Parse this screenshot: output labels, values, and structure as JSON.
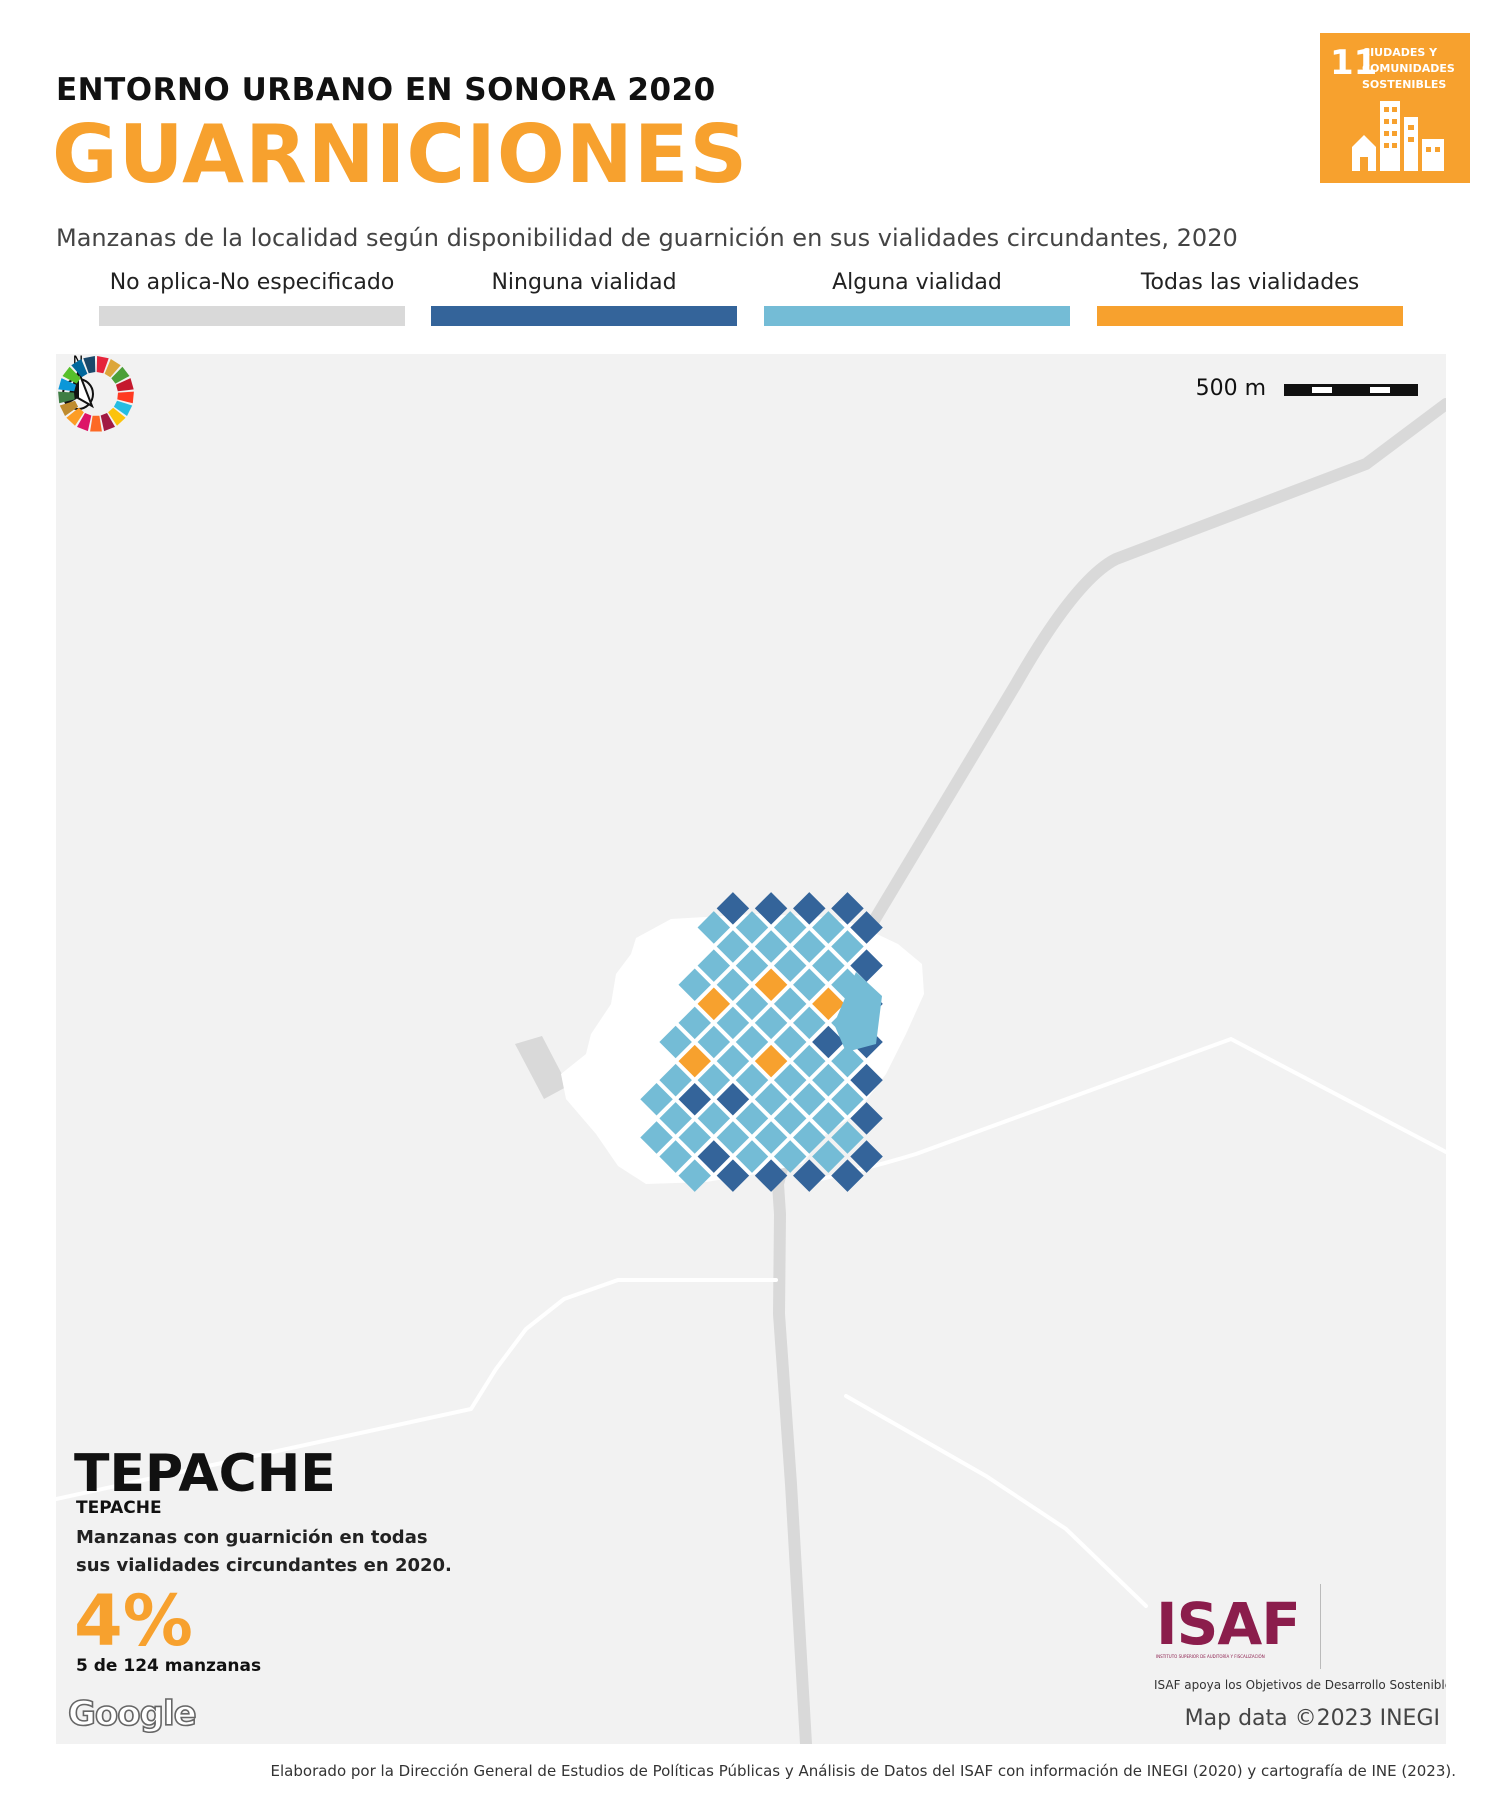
{
  "header": {
    "supertitle": "ENTORNO URBANO EN SONORA 2020",
    "title": "GUARNICIONES",
    "subtitle": "Manzanas de la localidad según disponibilidad de guarnición en sus vialidades circundantes, 2020"
  },
  "legend": [
    {
      "label": "No aplica-No especificado",
      "color": "#d9d9d9"
    },
    {
      "label": "Ninguna vialidad",
      "color": "#34649a"
    },
    {
      "label": "Alguna vialidad",
      "color": "#74bcd6"
    },
    {
      "label": "Todas las vialidades",
      "color": "#f7a12e"
    }
  ],
  "sdg_badge": {
    "number": "11",
    "text": "CIUDADES Y COMUNIDADES SOSTENIBLES",
    "icon": "city-buildings-icon",
    "color": "#f7a12e"
  },
  "map": {
    "scale_label": "500 m",
    "north_label": "N",
    "locality": {
      "name": "TEPACHE",
      "municipality": "TEPACHE",
      "description": "Manzanas con guarnición en todas sus vialidades circundantes en 2020.",
      "percent": "4%",
      "count_text": "5 de 124 manzanas"
    },
    "attribution_google": "Google",
    "map_data": "Map data ©2023 INEGI",
    "blocks_total": 124,
    "blocks_all_roads": 5
  },
  "logos": {
    "isaf": "ISAF",
    "isaf_subtitle": "INSTITUTO SUPERIOR DE AUDITORÍA Y FISCALIZACIÓN",
    "isaf_tagline": "ISAF apoya los Objetivos de Desarrollo Sostenible",
    "sdg_wheel": "sdg-wheel-icon"
  },
  "footer": "Elaborado por la Dirección General de Estudios de Políticas Públicas y Análisis de Datos del ISAF con información de INEGI (2020) y cartografía de INE (2023)."
}
